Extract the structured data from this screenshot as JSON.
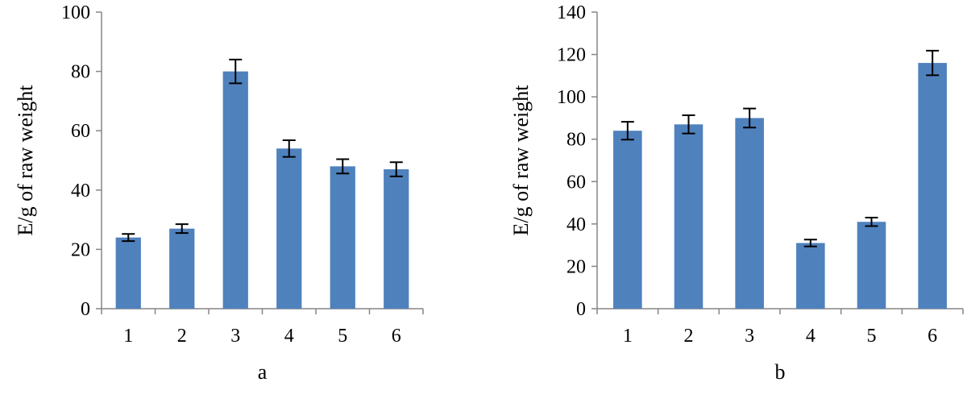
{
  "chart_data": [
    {
      "type": "bar",
      "panel_label": "a",
      "ylabel": "E/g of raw weight",
      "xlabel": "",
      "categories": [
        "1",
        "2",
        "3",
        "4",
        "5",
        "6"
      ],
      "values": [
        24,
        27,
        80,
        54,
        48,
        47
      ],
      "errors": [
        1.2,
        1.5,
        4,
        2.8,
        2.4,
        2.4
      ],
      "ylim": [
        0,
        100
      ],
      "yticks": [
        0,
        20,
        40,
        60,
        80,
        100
      ],
      "grid": false,
      "bar_color": "#4f81bd"
    },
    {
      "type": "bar",
      "panel_label": "b",
      "ylabel": "E/g of raw weight",
      "xlabel": "",
      "categories": [
        "1",
        "2",
        "3",
        "4",
        "5",
        "6"
      ],
      "values": [
        84,
        87,
        90,
        31,
        41,
        116
      ],
      "errors": [
        4.2,
        4.3,
        4.5,
        1.6,
        2,
        5.8
      ],
      "ylim": [
        0,
        140
      ],
      "yticks": [
        0,
        20,
        40,
        60,
        80,
        100,
        120,
        140
      ],
      "grid": false,
      "bar_color": "#4f81bd"
    }
  ]
}
